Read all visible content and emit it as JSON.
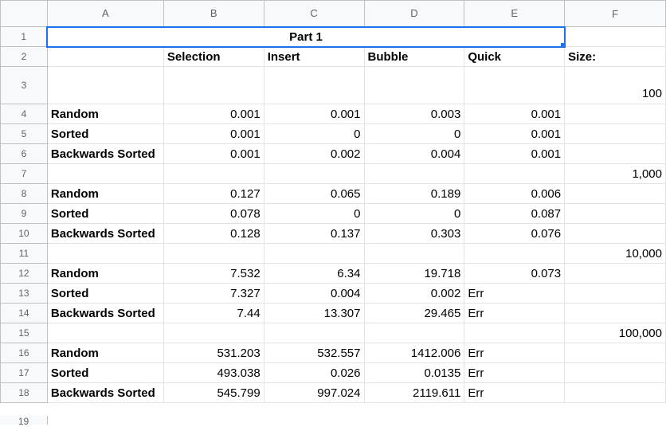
{
  "columns": [
    "A",
    "B",
    "C",
    "D",
    "E",
    "F"
  ],
  "rows": [
    {
      "num": "1",
      "title": "Part 1"
    },
    {
      "num": "2",
      "cells": [
        "",
        "Selection",
        "Insert",
        "Bubble",
        "Quick",
        "Size:"
      ]
    },
    {
      "num": "3",
      "cells": [
        "",
        "",
        "",
        "",
        "",
        "100"
      ]
    },
    {
      "num": "4",
      "cells": [
        "Random",
        "0.001",
        "0.001",
        "0.003",
        "0.001",
        ""
      ]
    },
    {
      "num": "5",
      "cells": [
        "Sorted",
        "0.001",
        "0",
        "0",
        "0.001",
        ""
      ]
    },
    {
      "num": "6",
      "cells": [
        "Backwards Sorted",
        "0.001",
        "0.002",
        "0.004",
        "0.001",
        ""
      ]
    },
    {
      "num": "7",
      "cells": [
        "",
        "",
        "",
        "",
        "",
        "1,000"
      ]
    },
    {
      "num": "8",
      "cells": [
        "Random",
        "0.127",
        "0.065",
        "0.189",
        "0.006",
        ""
      ]
    },
    {
      "num": "9",
      "cells": [
        "Sorted",
        "0.078",
        "0",
        "0",
        "0.087",
        ""
      ]
    },
    {
      "num": "10",
      "cells": [
        "Backwards Sorted",
        "0.128",
        "0.137",
        "0.303",
        "0.076",
        ""
      ]
    },
    {
      "num": "11",
      "cells": [
        "",
        "",
        "",
        "",
        "",
        "10,000"
      ]
    },
    {
      "num": "12",
      "cells": [
        "Random",
        "7.532",
        "6.34",
        "19.718",
        "0.073",
        ""
      ]
    },
    {
      "num": "13",
      "cells": [
        "Sorted",
        "7.327",
        "0.004",
        "0.002",
        "Err",
        ""
      ]
    },
    {
      "num": "14",
      "cells": [
        "Backwards Sorted",
        "7.44",
        "13.307",
        "29.465",
        "Err",
        ""
      ]
    },
    {
      "num": "15",
      "cells": [
        "",
        "",
        "",
        "",
        "",
        "100,000"
      ]
    },
    {
      "num": "16",
      "cells": [
        "Random",
        "531.203",
        "532.557",
        "1412.006",
        "Err",
        ""
      ]
    },
    {
      "num": "17",
      "cells": [
        "Sorted",
        "493.038",
        "0.026",
        "0.0135",
        "Err",
        ""
      ]
    },
    {
      "num": "18",
      "cells": [
        "Backwards Sorted",
        "545.799",
        "997.024",
        "2119.611",
        "Err",
        ""
      ]
    }
  ],
  "partial_row_num": "19",
  "colors": {
    "selection": "#1a73e8",
    "header_bg": "#f8f9fa",
    "gridline": "#e2e3e3"
  }
}
